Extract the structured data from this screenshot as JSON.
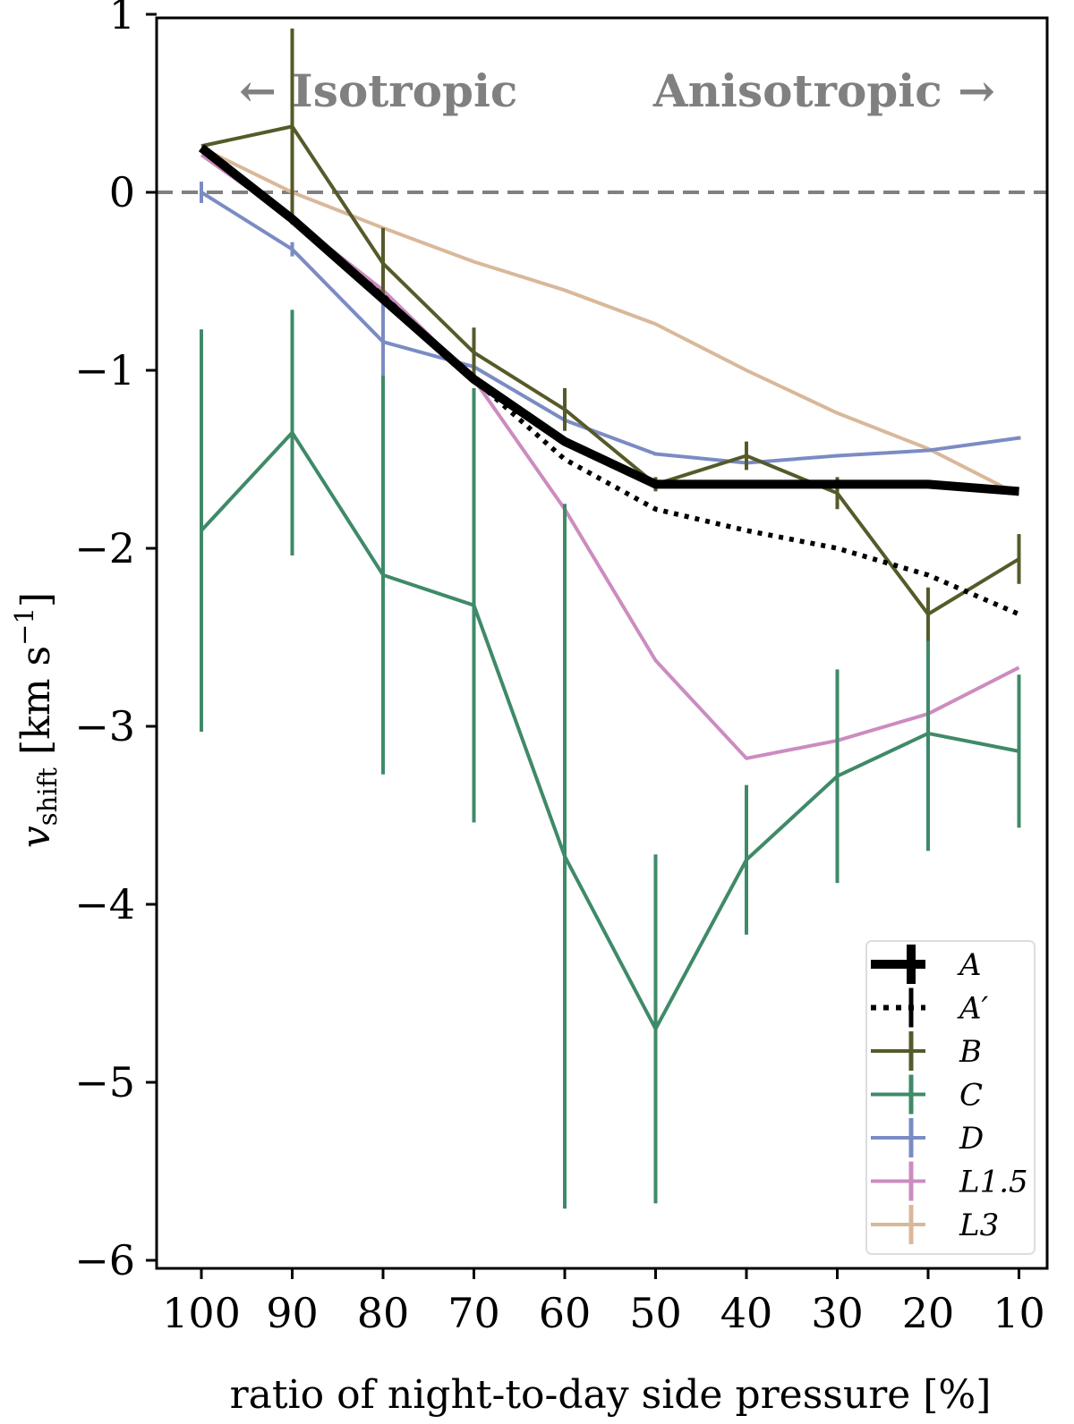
{
  "chart_data": {
    "type": "line",
    "title": "",
    "xlabel": "ratio of night-to-day side pressure [%]",
    "ylabel_parts": {
      "symbol": "v",
      "subscript": "shift",
      "unit": " [km s",
      "exponent": "−1",
      "close": "]"
    },
    "x": [
      100,
      90,
      80,
      70,
      60,
      50,
      40,
      30,
      20,
      10
    ],
    "x_tick_labels": [
      "100",
      "90",
      "80",
      "70",
      "60",
      "50",
      "40",
      "30",
      "20",
      "10"
    ],
    "y_ticks": [
      1,
      0,
      -1,
      -2,
      -3,
      -4,
      -5,
      -6
    ],
    "y_tick_labels": [
      "1",
      "0",
      "−1",
      "−2",
      "−3",
      "−4",
      "−5",
      "−6"
    ],
    "ylim": [
      -6.1,
      1.0
    ],
    "reference_line_y": 0,
    "annotations": {
      "left": "← Isotropic",
      "right": "Anisotropic →"
    },
    "legend_position": "lower-right",
    "series": [
      {
        "name": "A",
        "color": "#000000",
        "style": "thick",
        "values": [
          0.25,
          -0.15,
          -0.6,
          -1.05,
          -1.4,
          -1.64,
          -1.64,
          -1.64,
          -1.64,
          -1.68
        ],
        "errors": [
          0,
          0,
          0,
          0,
          0,
          0,
          0,
          0,
          0,
          0
        ]
      },
      {
        "name": "A′",
        "color": "#000000",
        "style": "dotted",
        "values": [
          0.25,
          -0.15,
          -0.58,
          -1.05,
          -1.5,
          -1.78,
          -1.9,
          -2.0,
          -2.15,
          -2.37
        ],
        "errors": [
          0,
          0,
          0,
          0,
          0,
          0,
          0,
          0,
          0,
          0
        ]
      },
      {
        "name": "B",
        "color": "#565a2a",
        "style": "solid",
        "values": [
          0.26,
          0.37,
          -0.4,
          -0.9,
          -1.22,
          -1.64,
          -1.48,
          -1.69,
          -2.37,
          -2.06
        ],
        "errors": [
          0,
          0.55,
          0.2,
          0.14,
          0.12,
          0.04,
          0.08,
          0.09,
          0.15,
          0.14
        ]
      },
      {
        "name": "C",
        "color": "#3f8a68",
        "style": "solid",
        "values": [
          -1.9,
          -1.35,
          -2.15,
          -2.32,
          -3.73,
          -4.7,
          -3.75,
          -3.28,
          -3.04,
          -3.14
        ],
        "errors": [
          1.13,
          0.69,
          1.12,
          1.22,
          1.98,
          0.98,
          0.42,
          0.6,
          0.66,
          0.43
        ]
      },
      {
        "name": "D",
        "color": "#7b8bc4",
        "style": "solid",
        "values": [
          0.0,
          -0.32,
          -0.84,
          -0.98,
          -1.28,
          -1.47,
          -1.52,
          -1.48,
          -1.45,
          -1.38
        ],
        "errors": [
          0.06,
          0.04,
          0.3,
          0.02,
          0.01,
          0.01,
          0.03,
          0.01,
          0.01,
          0.01
        ]
      },
      {
        "name": "L1.5",
        "color": "#cc8cc0",
        "style": "solid",
        "values": [
          0.21,
          -0.15,
          -0.55,
          -1.05,
          -1.78,
          -2.63,
          -3.18,
          -3.08,
          -2.93,
          -2.67
        ],
        "errors": [
          0,
          0,
          0,
          0,
          0,
          0,
          0,
          0,
          0,
          0
        ]
      },
      {
        "name": "L3",
        "color": "#d9b89a",
        "style": "solid",
        "values": [
          0.25,
          0.0,
          -0.2,
          -0.39,
          -0.55,
          -0.74,
          -1.0,
          -1.24,
          -1.44,
          -1.7
        ],
        "errors": [
          0,
          0,
          0,
          0,
          0,
          0,
          0,
          0,
          0,
          0
        ]
      }
    ]
  }
}
